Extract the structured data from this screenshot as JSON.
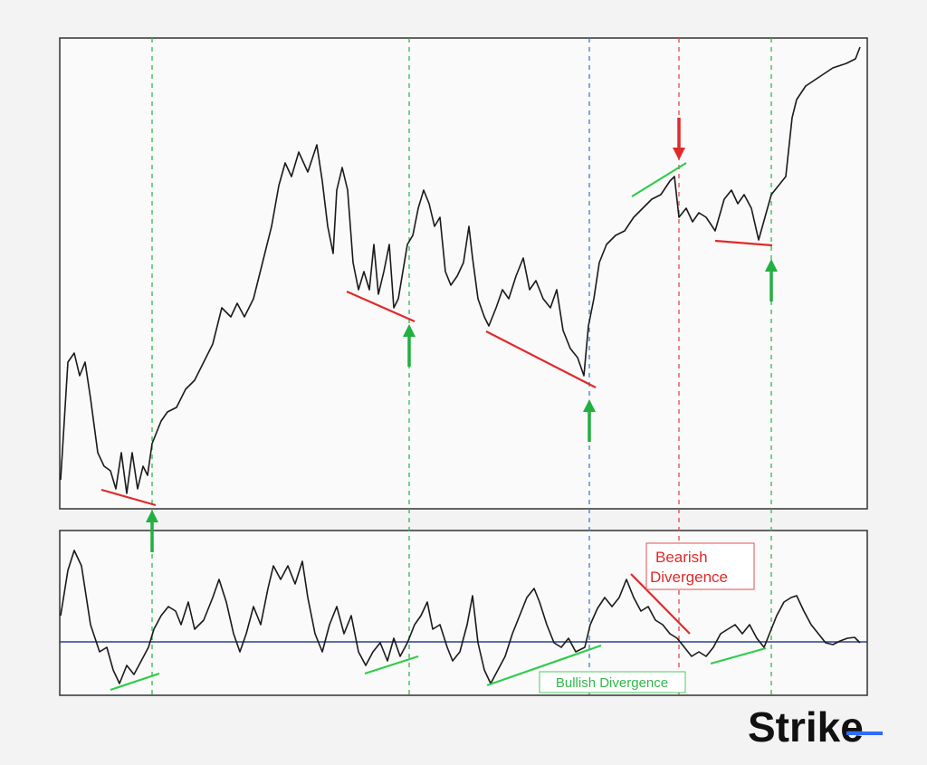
{
  "annotations": {
    "bearish": [
      "Bearish",
      "Divergence"
    ],
    "bullish": "Bullish Divergence"
  },
  "logo": "Strike"
}
